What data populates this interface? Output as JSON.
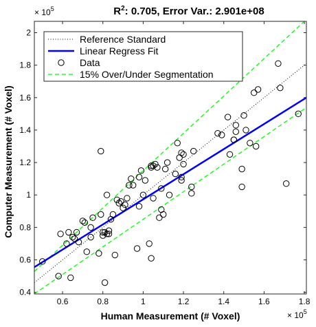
{
  "chart_data": {
    "type": "scatter",
    "title_parts": {
      "r2_label": "R",
      "r2_sup": "2",
      "r2_value": ": 0.705, Error Var.: 2.901e+08"
    },
    "xlabel": "Human Measurement (# Voxel)",
    "ylabel": "Computer Measurement (# Voxel)",
    "x_exponent": {
      "base": "× 10",
      "power": "5"
    },
    "y_exponent": {
      "base": "× 10",
      "power": "5"
    },
    "xlim": [
      0.46,
      1.81
    ],
    "ylim": [
      0.39,
      2.07
    ],
    "x_ticks": [
      0.6,
      0.8,
      1.0,
      1.2,
      1.4,
      1.6,
      1.8
    ],
    "x_tick_labels": [
      "0.6",
      "0.8",
      "1",
      "1.2",
      "1.4",
      "1.6",
      "1.8"
    ],
    "y_ticks": [
      0.4,
      0.6,
      0.8,
      1.0,
      1.2,
      1.4,
      1.6,
      1.8,
      2.0
    ],
    "y_tick_labels": [
      "0.4",
      "0.6",
      "0.8",
      "1",
      "1.2",
      "1.4",
      "1.6",
      "1.8",
      "2"
    ],
    "legend_position": "top-left",
    "legend": [
      {
        "label": "Reference Standard",
        "style": "dotted",
        "color": "#000000"
      },
      {
        "label": "Linear Regress Fit",
        "style": "solid",
        "color": "#0000ff"
      },
      {
        "label": "Data",
        "style": "marker",
        "color": "#000000"
      },
      {
        "label": "15% Over/Under Segmentation",
        "style": "dashed",
        "color": "#00ff00"
      }
    ],
    "reference_line": {
      "slope": 1.0,
      "intercept": 0.0
    },
    "regression_line": {
      "points": [
        [
          0.46,
          0.555
        ],
        [
          1.81,
          1.6
        ]
      ]
    },
    "segmentation_lines": [
      {
        "slope": 1.15,
        "intercept": 0.0
      },
      {
        "slope": 0.85,
        "intercept": 0.0
      }
    ],
    "series": [
      {
        "x": [
          0.5,
          0.58,
          0.59,
          0.62,
          0.63,
          0.64,
          0.65,
          0.66,
          0.67,
          0.68,
          0.7,
          0.71,
          0.72,
          0.74,
          0.74,
          0.75,
          0.78,
          0.79,
          0.79,
          0.8,
          0.8,
          0.81,
          0.81,
          0.82,
          0.82,
          0.83,
          0.83,
          0.84,
          0.85,
          0.86,
          0.87,
          0.88,
          0.89,
          0.9,
          0.91,
          0.92,
          0.93,
          0.94,
          0.95,
          0.97,
          0.98,
          0.98,
          0.99,
          1.0,
          1.01,
          1.03,
          1.04,
          1.04,
          1.04,
          1.05,
          1.05,
          1.06,
          1.07,
          1.08,
          1.09,
          1.09,
          1.1,
          1.11,
          1.12,
          1.13,
          1.16,
          1.17,
          1.18,
          1.19,
          1.19,
          1.19,
          1.2,
          1.2,
          1.24,
          1.24,
          1.25,
          1.37,
          1.39,
          1.42,
          1.43,
          1.45,
          1.45,
          1.46,
          1.46,
          1.49,
          1.49,
          1.5,
          1.51,
          1.53,
          1.55,
          1.56,
          1.57,
          1.67,
          1.68,
          1.71,
          1.77
        ],
        "y": [
          0.59,
          0.5,
          0.76,
          0.7,
          0.77,
          0.49,
          0.74,
          0.73,
          0.77,
          0.71,
          0.84,
          0.83,
          0.65,
          0.74,
          0.8,
          0.86,
          0.64,
          1.27,
          0.88,
          0.75,
          0.77,
          0.46,
          0.77,
          0.76,
          1.0,
          0.78,
          0.76,
          0.85,
          0.88,
          0.63,
          0.97,
          0.95,
          0.96,
          0.92,
          0.94,
          0.98,
          1.06,
          1.1,
          1.06,
          0.67,
          0.93,
          1.11,
          1.15,
          1.0,
          1.09,
          0.7,
          0.61,
          1.17,
          1.18,
          1.18,
          0.98,
          1.19,
          1.17,
          0.86,
          0.91,
          1.04,
          0.88,
          1.16,
          1.2,
          1.0,
          1.13,
          1.32,
          1.23,
          1.26,
          1.11,
          1.09,
          1.25,
          1.19,
          1.05,
          1.01,
          1.27,
          1.38,
          1.37,
          1.48,
          1.25,
          1.34,
          1.34,
          1.39,
          1.43,
          1.16,
          1.05,
          1.49,
          1.4,
          1.32,
          1.63,
          1.3,
          1.65,
          1.81,
          1.66,
          1.07,
          1.5
        ]
      }
    ]
  }
}
